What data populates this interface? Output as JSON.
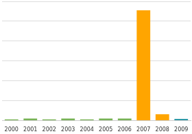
{
  "chart_data": {
    "type": "bar",
    "categories": [
      "2000",
      "2001",
      "2002",
      "2003",
      "2004",
      "2005",
      "2006",
      "2007",
      "2008",
      "2009"
    ],
    "values": [
      0.06,
      0.1,
      0.06,
      0.1,
      0.06,
      0.1,
      0.1,
      5.55,
      0.32,
      0.08
    ],
    "colors": [
      "#77b255",
      "#77b255",
      "#77b255",
      "#77b255",
      "#77b255",
      "#77b255",
      "#77b255",
      "#ffa500",
      "#ffa500",
      "#2f9aa8"
    ],
    "ylim": [
      0,
      6
    ],
    "yticks": [
      0,
      1,
      2,
      3,
      4,
      5,
      6
    ],
    "grid": true,
    "tick_labels": "x"
  }
}
